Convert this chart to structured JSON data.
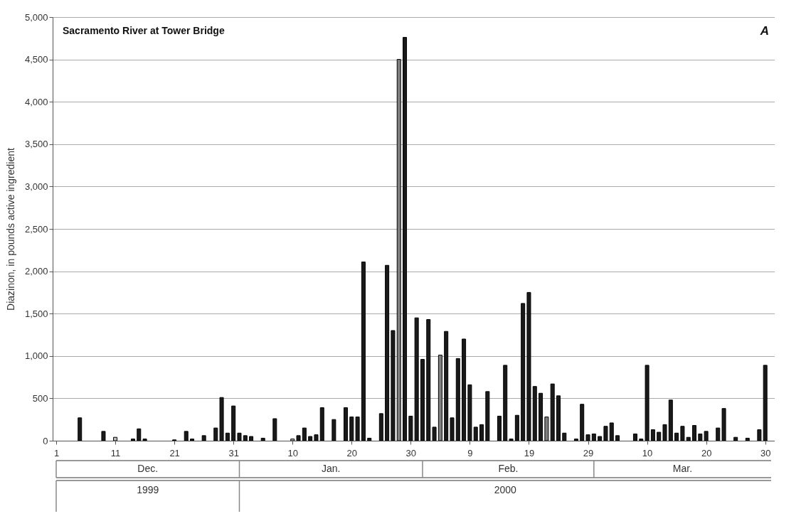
{
  "chart_data": {
    "type": "bar",
    "title": "Sacramento River at Tower Bridge",
    "ylabel": "Diazinon, in pounds active ingredient",
    "annotations": [
      "A",
      "Dec.",
      "Jan.",
      "Feb.",
      "Mar.",
      "1999",
      "2000"
    ],
    "x": [
      "1999-12-05",
      "1999-12-09",
      "1999-12-11",
      "1999-12-14",
      "1999-12-15",
      "1999-12-16",
      "1999-12-21",
      "1999-12-23",
      "1999-12-24",
      "1999-12-26",
      "1999-12-28",
      "1999-12-29",
      "1999-12-30",
      "1999-12-31",
      "2000-01-01",
      "2000-01-02",
      "2000-01-03",
      "2000-01-05",
      "2000-01-07",
      "2000-01-10",
      "2000-01-11",
      "2000-01-12",
      "2000-01-13",
      "2000-01-14",
      "2000-01-15",
      "2000-01-17",
      "2000-01-19",
      "2000-01-20",
      "2000-01-21",
      "2000-01-22",
      "2000-01-23",
      "2000-01-25",
      "2000-01-26",
      "2000-01-27",
      "2000-01-28",
      "2000-01-29",
      "2000-01-30",
      "2000-01-31",
      "2000-02-01",
      "2000-02-02",
      "2000-02-03",
      "2000-02-04",
      "2000-02-05",
      "2000-02-06",
      "2000-02-07",
      "2000-02-08",
      "2000-02-09",
      "2000-02-10",
      "2000-02-11",
      "2000-02-12",
      "2000-02-14",
      "2000-02-15",
      "2000-02-16",
      "2000-02-17",
      "2000-02-18",
      "2000-02-19",
      "2000-02-20",
      "2000-02-21",
      "2000-02-22",
      "2000-02-23",
      "2000-02-24",
      "2000-02-25",
      "2000-02-27",
      "2000-02-28",
      "2000-02-29",
      "2000-03-01",
      "2000-03-02",
      "2000-03-03",
      "2000-03-04",
      "2000-03-05",
      "2000-03-08",
      "2000-03-09",
      "2000-03-10",
      "2000-03-11",
      "2000-03-12",
      "2000-03-13",
      "2000-03-14",
      "2000-03-15",
      "2000-03-16",
      "2000-03-17",
      "2000-03-18",
      "2000-03-19",
      "2000-03-20",
      "2000-03-22",
      "2000-03-23",
      "2000-03-25",
      "2000-03-27",
      "2000-03-29",
      "2000-03-30"
    ],
    "values": [
      270,
      110,
      40,
      20,
      140,
      20,
      10,
      110,
      20,
      60,
      150,
      510,
      90,
      410,
      90,
      60,
      50,
      30,
      260,
      20,
      60,
      150,
      50,
      70,
      390,
      250,
      390,
      280,
      280,
      2110,
      30,
      320,
      2070,
      1300,
      4500,
      4760,
      290,
      1450,
      960,
      1430,
      160,
      1010,
      1290,
      270,
      970,
      1200,
      660,
      160,
      190,
      580,
      290,
      890,
      20,
      300,
      1620,
      1750,
      640,
      560,
      280,
      670,
      530,
      90,
      20,
      430,
      70,
      80,
      50,
      170,
      210,
      60,
      80,
      20,
      890,
      130,
      100,
      190,
      480,
      90,
      170,
      40,
      180,
      80,
      110,
      150,
      380,
      40,
      30,
      130,
      890
    ],
    "colors": [
      "#1a1a1a",
      "#1a1a1a",
      "#c0c0c0",
      "#1a1a1a",
      "#1a1a1a",
      "#1a1a1a",
      "#1a1a1a",
      "#1a1a1a",
      "#1a1a1a",
      "#1a1a1a",
      "#1a1a1a",
      "#1a1a1a",
      "#1a1a1a",
      "#1a1a1a",
      "#1a1a1a",
      "#1a1a1a",
      "#1a1a1a",
      "#1a1a1a",
      "#1a1a1a",
      "#c0c0c0",
      "#1a1a1a",
      "#1a1a1a",
      "#1a1a1a",
      "#1a1a1a",
      "#1a1a1a",
      "#1a1a1a",
      "#1a1a1a",
      "#1a1a1a",
      "#1a1a1a",
      "#1a1a1a",
      "#1a1a1a",
      "#1a1a1a",
      "#1a1a1a",
      "#1a1a1a",
      "#808080",
      "#1a1a1a",
      "#1a1a1a",
      "#1a1a1a",
      "#1a1a1a",
      "#1a1a1a",
      "#1a1a1a",
      "#808080",
      "#1a1a1a",
      "#1a1a1a",
      "#1a1a1a",
      "#1a1a1a",
      "#1a1a1a",
      "#1a1a1a",
      "#1a1a1a",
      "#1a1a1a",
      "#1a1a1a",
      "#1a1a1a",
      "#1a1a1a",
      "#1a1a1a",
      "#1a1a1a",
      "#1a1a1a",
      "#1a1a1a",
      "#1a1a1a",
      "#808080",
      "#1a1a1a",
      "#1a1a1a",
      "#1a1a1a",
      "#1a1a1a",
      "#1a1a1a",
      "#1a1a1a",
      "#1a1a1a",
      "#1a1a1a",
      "#1a1a1a",
      "#1a1a1a",
      "#1a1a1a",
      "#1a1a1a",
      "#1a1a1a",
      "#1a1a1a",
      "#1a1a1a",
      "#1a1a1a",
      "#1a1a1a",
      "#1a1a1a",
      "#1a1a1a",
      "#1a1a1a",
      "#1a1a1a",
      "#1a1a1a",
      "#1a1a1a",
      "#1a1a1a",
      "#1a1a1a",
      "#1a1a1a",
      "#1a1a1a",
      "#1a1a1a",
      "#1a1a1a",
      "#1a1a1a"
    ],
    "xlim": [
      "1999-12-01",
      "2000-03-31"
    ],
    "xticks": [
      {
        "value": "1999-12-01",
        "label": "1"
      },
      {
        "value": "1999-12-11",
        "label": "11"
      },
      {
        "value": "1999-12-21",
        "label": "21"
      },
      {
        "value": "1999-12-31",
        "label": "31"
      },
      {
        "value": "2000-01-10",
        "label": "10"
      },
      {
        "value": "2000-01-20",
        "label": "20"
      },
      {
        "value": "2000-01-30",
        "label": "30"
      },
      {
        "value": "2000-02-09",
        "label": "9"
      },
      {
        "value": "2000-02-19",
        "label": "19"
      },
      {
        "value": "2000-02-29",
        "label": "29"
      },
      {
        "value": "2000-03-10",
        "label": "10"
      },
      {
        "value": "2000-03-20",
        "label": "20"
      },
      {
        "value": "2000-03-30",
        "label": "30"
      }
    ],
    "ylim": [
      0,
      5000
    ],
    "yticks": [
      0,
      500,
      {
        "value": 1000,
        "label": "1,000"
      },
      {
        "value": 1500,
        "label": "1,500"
      },
      {
        "value": 2000,
        "label": "2,000"
      },
      {
        "value": 2500,
        "label": "2,500"
      },
      {
        "value": 3000,
        "label": "3,000"
      },
      {
        "value": 3500,
        "label": "3,500"
      },
      {
        "value": 4000,
        "label": "4,000"
      },
      {
        "value": 4500,
        "label": "4,500"
      },
      {
        "value": 5000,
        "label": "5,000"
      }
    ],
    "grid": "y"
  }
}
